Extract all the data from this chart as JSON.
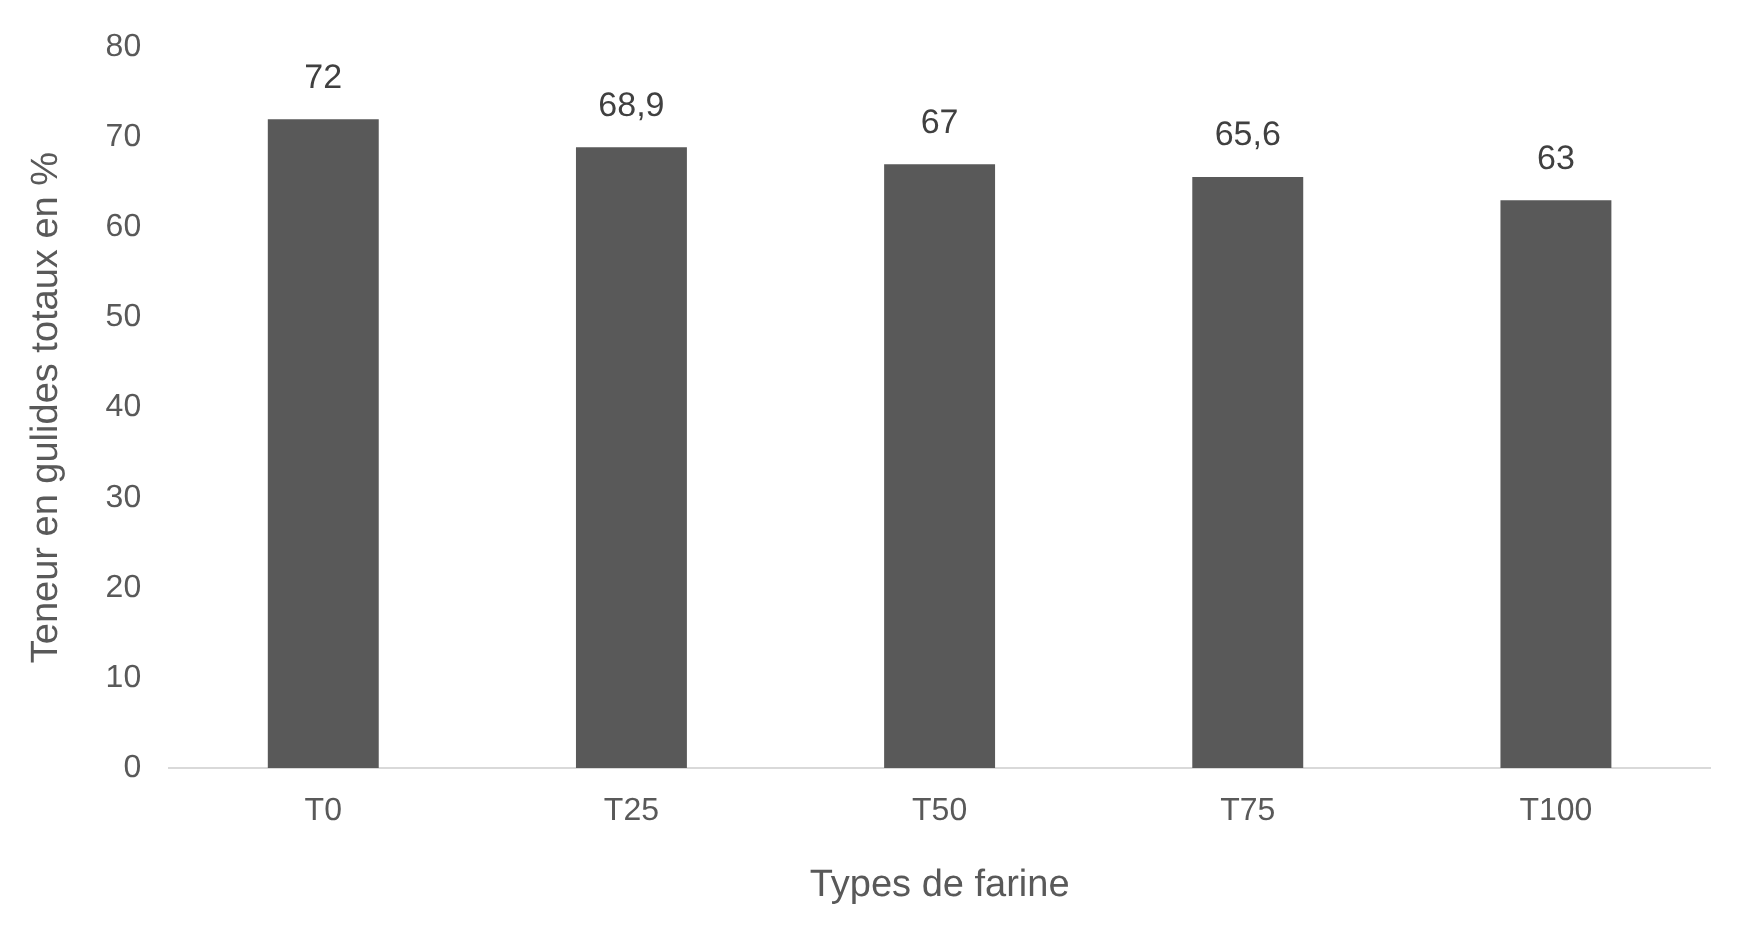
{
  "chart_data": {
    "type": "bar",
    "xlabel": "Types de farine",
    "ylabel": "Teneur en gulides totaux en %",
    "categories": [
      "T0",
      "T25",
      "T50",
      "T75",
      "T100"
    ],
    "values": [
      72,
      68.9,
      67,
      65.6,
      63
    ],
    "value_labels": [
      "72",
      "68,9",
      "67",
      "65,6",
      "63"
    ],
    "color": "#595959",
    "ylim": [
      0,
      80
    ],
    "yticks": [
      0,
      10,
      20,
      30,
      40,
      50,
      60,
      70,
      80
    ],
    "grid": false,
    "legend": false
  }
}
